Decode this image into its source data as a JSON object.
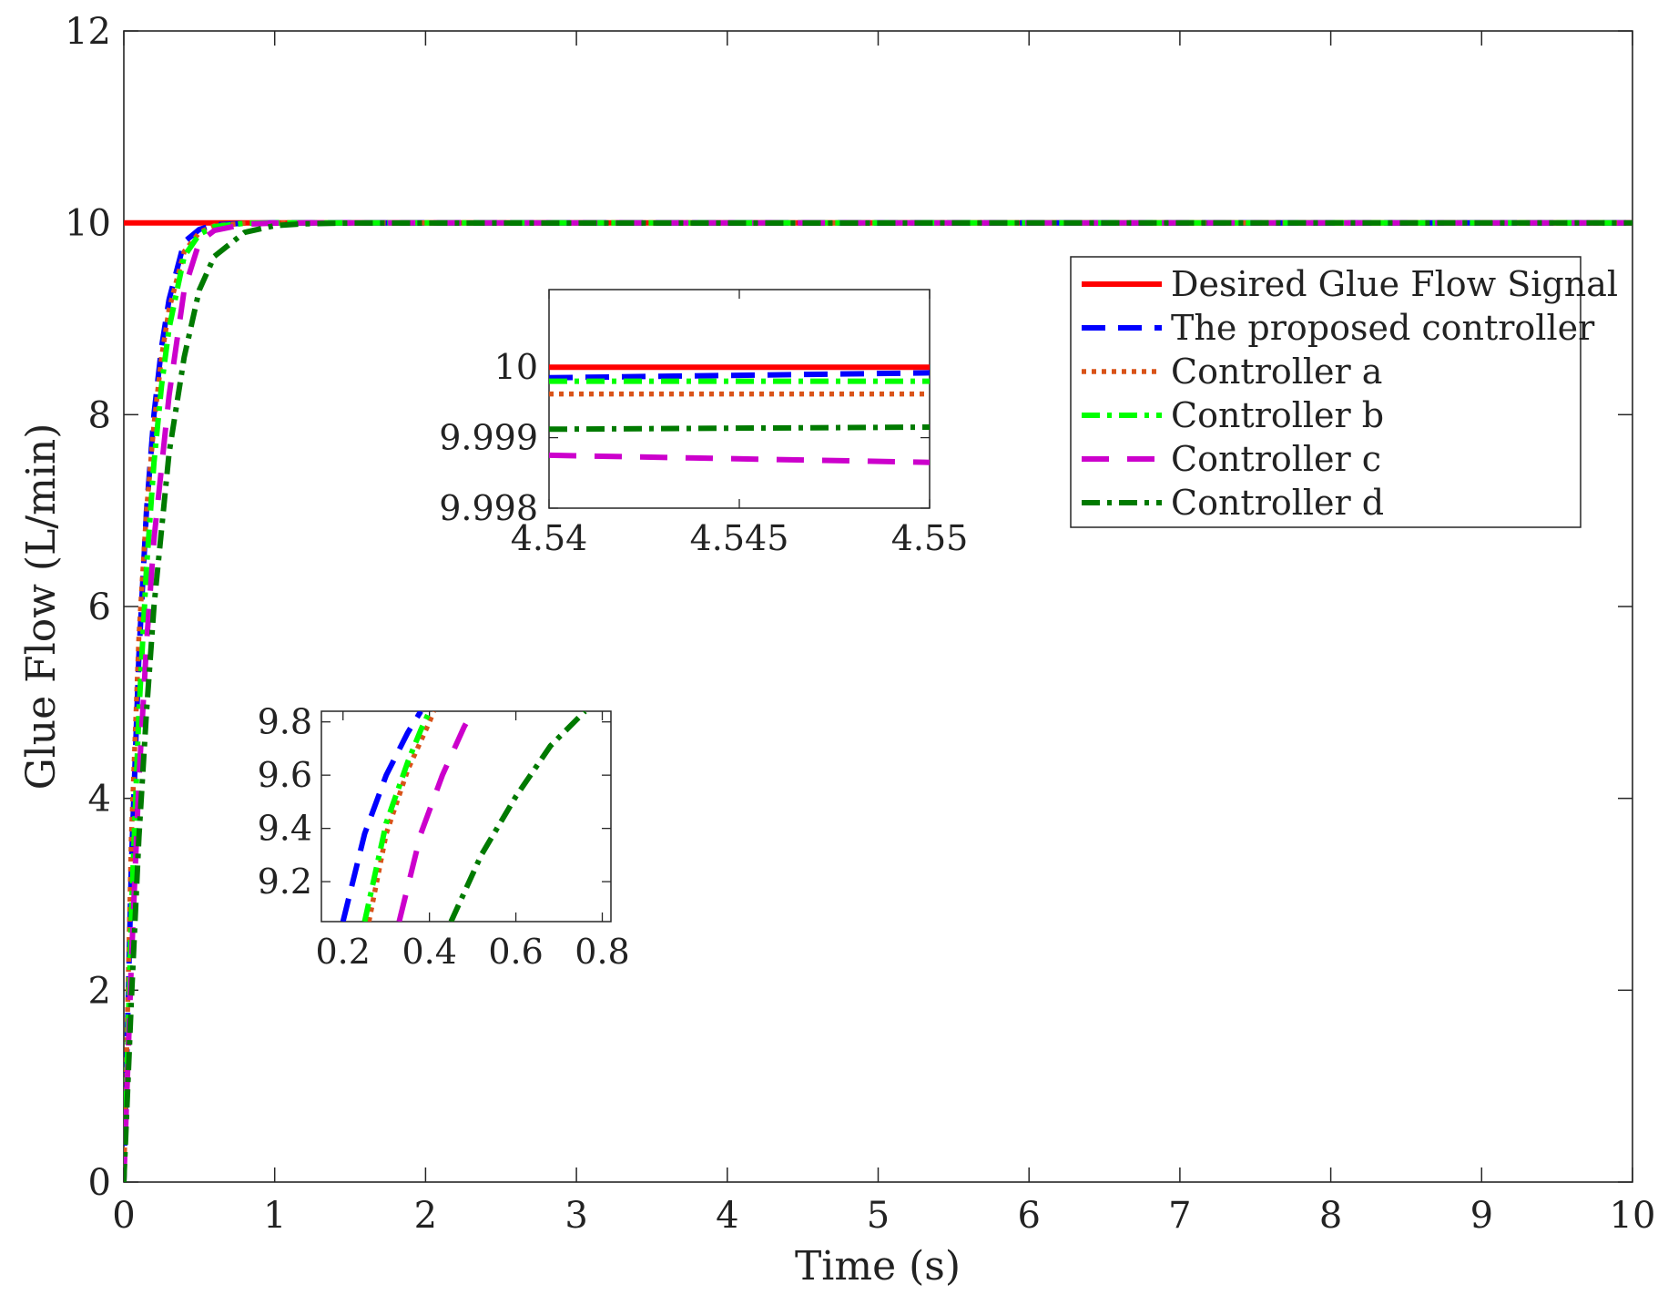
{
  "chart_data": {
    "type": "line",
    "xlabel": "Time (s)",
    "ylabel": "Glue Flow (L/min)",
    "xlim": [
      0,
      10
    ],
    "ylim": [
      0,
      12
    ],
    "x_ticks": [
      "0",
      "1",
      "2",
      "3",
      "4",
      "5",
      "6",
      "7",
      "8",
      "9",
      "10"
    ],
    "y_ticks": [
      "0",
      "2",
      "4",
      "6",
      "8",
      "10",
      "12"
    ],
    "grid": false,
    "legend_position": "right",
    "series": [
      {
        "name": "Desired Glue Flow Signal",
        "color": "#ff0000",
        "style": "solid",
        "x": [
          0,
          10
        ],
        "y": [
          10,
          10
        ]
      },
      {
        "name": "The proposed controller",
        "color": "#0000ff",
        "style": "dashed",
        "x": [
          0,
          0.05,
          0.1,
          0.15,
          0.2,
          0.25,
          0.3,
          0.4,
          0.5,
          0.6,
          0.8,
          1.0,
          10
        ],
        "y": [
          0,
          3.3,
          5.5,
          7.0,
          8.0,
          8.7,
          9.2,
          9.8,
          9.93,
          9.98,
          9.995,
          9.999,
          10
        ]
      },
      {
        "name": "Controller a",
        "color": "#d95319",
        "style": "dotted",
        "x": [
          0,
          0.05,
          0.1,
          0.15,
          0.2,
          0.25,
          0.3,
          0.4,
          0.5,
          0.6,
          0.8,
          1.0,
          10
        ],
        "y": [
          0,
          3.6,
          5.7,
          7.0,
          7.9,
          8.6,
          9.1,
          9.7,
          9.9,
          9.97,
          9.995,
          9.999,
          10
        ]
      },
      {
        "name": "Controller b",
        "color": "#00ff00",
        "style": "dashdot",
        "x": [
          0,
          0.05,
          0.1,
          0.15,
          0.2,
          0.25,
          0.3,
          0.4,
          0.5,
          0.6,
          0.8,
          1.0,
          10
        ],
        "y": [
          0,
          2.8,
          4.9,
          6.4,
          7.5,
          8.3,
          8.9,
          9.65,
          9.88,
          9.96,
          9.995,
          9.999,
          10
        ]
      },
      {
        "name": "Controller c",
        "color": "#cc00cc",
        "style": "longdash",
        "x": [
          0,
          0.05,
          0.1,
          0.15,
          0.2,
          0.3,
          0.4,
          0.5,
          0.6,
          0.8,
          1.0,
          1.2,
          10
        ],
        "y": [
          0,
          2.3,
          4.2,
          5.6,
          6.7,
          8.2,
          9.3,
          9.8,
          9.92,
          9.985,
          9.997,
          9.999,
          10
        ]
      },
      {
        "name": "Controller d",
        "color": "#007a00",
        "style": "dashdot",
        "x": [
          0,
          0.05,
          0.1,
          0.15,
          0.2,
          0.3,
          0.4,
          0.5,
          0.6,
          0.8,
          1.0,
          1.2,
          1.5,
          10
        ],
        "y": [
          0,
          1.9,
          3.6,
          4.9,
          6.0,
          7.6,
          8.6,
          9.3,
          9.65,
          9.9,
          9.97,
          9.99,
          9.998,
          10
        ]
      }
    ],
    "insets": [
      {
        "xlim": [
          4.54,
          4.55
        ],
        "ylim": [
          9.998,
          10.0011
        ],
        "x_ticks": [
          "4.54",
          "4.545",
          "4.55"
        ],
        "y_ticks": [
          "9.998",
          "9.999",
          "10"
        ],
        "series": [
          {
            "name": "Desired Glue Flow Signal",
            "x": [
              4.54,
              4.55
            ],
            "y": [
              10.0,
              10.0
            ]
          },
          {
            "name": "The proposed controller",
            "x": [
              4.54,
              4.55
            ],
            "y": [
              9.99985,
              9.99992
            ]
          },
          {
            "name": "Controller a",
            "x": [
              4.54,
              4.55
            ],
            "y": [
              9.99962,
              9.99962
            ]
          },
          {
            "name": "Controller b",
            "x": [
              4.54,
              4.55
            ],
            "y": [
              9.9998,
              9.9998
            ]
          },
          {
            "name": "Controller c",
            "x": [
              4.54,
              4.55
            ],
            "y": [
              9.99875,
              9.99865
            ]
          },
          {
            "name": "Controller d",
            "x": [
              4.54,
              4.55
            ],
            "y": [
              9.99912,
              9.99915
            ]
          }
        ]
      },
      {
        "xlim": [
          0.15,
          0.82
        ],
        "ylim": [
          9.05,
          9.84
        ],
        "x_ticks": [
          "0.2",
          "0.4",
          "0.6",
          "0.8"
        ],
        "y_ticks": [
          "9.2",
          "9.4",
          "9.6",
          "9.8"
        ],
        "series": [
          {
            "name": "The proposed controller",
            "x": [
              0.2,
              0.25,
              0.3,
              0.35,
              0.38
            ],
            "y": [
              9.05,
              9.38,
              9.6,
              9.76,
              9.84
            ]
          },
          {
            "name": "Controller a",
            "x": [
              0.26,
              0.3,
              0.35,
              0.4,
              0.41
            ],
            "y": [
              9.05,
              9.38,
              9.62,
              9.8,
              9.84
            ]
          },
          {
            "name": "Controller b",
            "x": [
              0.25,
              0.3,
              0.35,
              0.38,
              0.4
            ],
            "y": [
              9.05,
              9.42,
              9.65,
              9.77,
              9.84
            ]
          },
          {
            "name": "Controller c",
            "x": [
              0.33,
              0.38,
              0.43,
              0.48,
              0.5
            ],
            "y": [
              9.05,
              9.38,
              9.6,
              9.78,
              9.84
            ]
          },
          {
            "name": "Controller d",
            "x": [
              0.45,
              0.52,
              0.6,
              0.68,
              0.76
            ],
            "y": [
              9.05,
              9.3,
              9.52,
              9.71,
              9.84
            ]
          }
        ]
      }
    ]
  }
}
